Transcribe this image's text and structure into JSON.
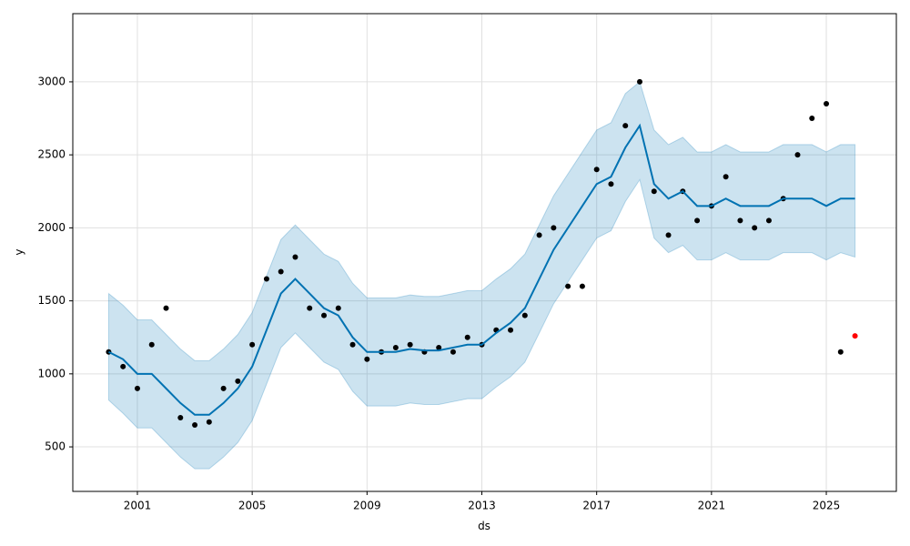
{
  "chart_data": {
    "type": "line",
    "x_label": "ds",
    "y_label": "y",
    "x": [
      2000,
      2000.5,
      2001,
      2001.5,
      2002,
      2002.5,
      2003,
      2003.5,
      2004,
      2004.5,
      2005,
      2005.5,
      2006,
      2006.5,
      2007,
      2007.5,
      2008,
      2008.5,
      2009,
      2009.5,
      2010,
      2010.5,
      2011,
      2011.5,
      2012,
      2012.5,
      2013,
      2013.5,
      2014,
      2014.5,
      2015,
      2015.5,
      2016,
      2016.5,
      2017,
      2017.5,
      2018,
      2018.5,
      2019,
      2019.5,
      2020,
      2020.5,
      2021,
      2021.5,
      2022,
      2022.5,
      2023,
      2023.5,
      2024,
      2024.5,
      2025,
      2025.5,
      2026
    ],
    "series": [
      {
        "name": "observed",
        "color": "#000000",
        "style": "dots",
        "values": [
          1150,
          1050,
          900,
          1200,
          1450,
          700,
          650,
          670,
          900,
          950,
          1200,
          1650,
          1700,
          1800,
          1450,
          1400,
          1450,
          1200,
          1100,
          1150,
          1180,
          1200,
          1150,
          1180,
          1150,
          1250,
          1200,
          1300,
          1300,
          1400,
          1950,
          2000,
          1600,
          1600,
          2400,
          2300,
          2700,
          3000,
          2250,
          1950,
          2250,
          2050,
          2150,
          2350,
          2050,
          2000,
          2050,
          2200,
          2500,
          2750,
          2850,
          1150,
          null
        ]
      },
      {
        "name": "latest",
        "color": "#ff0000",
        "style": "dots",
        "values": [
          null,
          null,
          null,
          null,
          null,
          null,
          null,
          null,
          null,
          null,
          null,
          null,
          null,
          null,
          null,
          null,
          null,
          null,
          null,
          null,
          null,
          null,
          null,
          null,
          null,
          null,
          null,
          null,
          null,
          null,
          null,
          null,
          null,
          null,
          null,
          null,
          null,
          null,
          null,
          null,
          null,
          null,
          null,
          null,
          null,
          null,
          null,
          null,
          null,
          null,
          null,
          null,
          1260
        ]
      },
      {
        "name": "forecast",
        "color": "#0072B2",
        "style": "line",
        "values": [
          1150,
          1100,
          1000,
          1000,
          900,
          800,
          720,
          720,
          800,
          900,
          1050,
          1300,
          1550,
          1650,
          1550,
          1450,
          1400,
          1250,
          1150,
          1150,
          1150,
          1170,
          1160,
          1160,
          1180,
          1200,
          1200,
          1280,
          1350,
          1450,
          1650,
          1850,
          2000,
          2150,
          2300,
          2350,
          2550,
          2700,
          2300,
          2200,
          2250,
          2150,
          2150,
          2200,
          2150,
          2150,
          2150,
          2200,
          2200,
          2200,
          2150,
          2200,
          2200
        ]
      }
    ],
    "band": {
      "color": "#0072B2",
      "upper": [
        1550,
        1470,
        1370,
        1370,
        1270,
        1170,
        1090,
        1090,
        1170,
        1270,
        1420,
        1670,
        1920,
        2020,
        1920,
        1820,
        1770,
        1620,
        1520,
        1520,
        1520,
        1540,
        1530,
        1530,
        1550,
        1570,
        1570,
        1650,
        1720,
        1820,
        2020,
        2220,
        2370,
        2520,
        2670,
        2720,
        2920,
        3000,
        2670,
        2570,
        2620,
        2520,
        2520,
        2570,
        2520,
        2520,
        2520,
        2570,
        2570,
        2570,
        2520,
        2570,
        2570
      ],
      "lower": [
        820,
        730,
        630,
        630,
        530,
        430,
        350,
        350,
        430,
        530,
        680,
        930,
        1180,
        1280,
        1180,
        1080,
        1030,
        880,
        780,
        780,
        780,
        800,
        790,
        790,
        810,
        830,
        830,
        910,
        980,
        1080,
        1280,
        1480,
        1630,
        1780,
        1930,
        1980,
        2180,
        2330,
        1930,
        1830,
        1880,
        1780,
        1780,
        1830,
        1780,
        1780,
        1780,
        1830,
        1830,
        1830,
        1780,
        1830,
        1800
      ]
    },
    "xlim": [
      1998.75,
      2027.44
    ],
    "ylim": [
      195,
      3467
    ],
    "xticks": [
      2001,
      2005,
      2009,
      2013,
      2017,
      2021,
      2025
    ],
    "yticks": [
      500,
      1000,
      1500,
      2000,
      2500,
      3000
    ],
    "grid": true
  }
}
